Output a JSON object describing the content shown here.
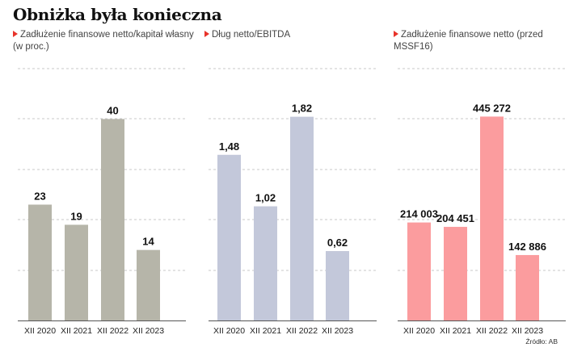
{
  "title": "Obniżka była konieczna",
  "source": "Źródło: AB",
  "chart_data": [
    {
      "type": "bar",
      "title": "Zadłużenie finansowe netto/kapitał własny",
      "title_line2": "(w proc.)",
      "categories": [
        "XII 2020",
        "XII 2021",
        "XII 2022",
        "XII 2023"
      ],
      "values": [
        23,
        19,
        40,
        14
      ],
      "value_labels": [
        "23",
        "19",
        "40",
        "14"
      ],
      "ylim": [
        0,
        50
      ],
      "grid": true,
      "color": "#b6b5a9"
    },
    {
      "type": "bar",
      "title": "Dług netto/EBITDA",
      "categories": [
        "XII 2020",
        "XII 2021",
        "XII 2022",
        "XII 2023"
      ],
      "values": [
        1.48,
        1.02,
        1.82,
        0.62
      ],
      "value_labels": [
        "1,48",
        "1,02",
        "1,82",
        "0,62"
      ],
      "ylim": [
        0,
        2.25
      ],
      "grid": true,
      "color": "#c3c8da"
    },
    {
      "type": "bar",
      "title": "Zadłużenie finansowe netto (przed MSSF16)",
      "categories": [
        "XII 2020",
        "XII 2021",
        "XII 2022",
        "XII 2023"
      ],
      "values": [
        214003,
        204451,
        445272,
        142886
      ],
      "value_labels": [
        "214 003",
        "204 451",
        "445 272",
        "142 886"
      ],
      "ylim": [
        0,
        550000
      ],
      "grid": true,
      "color": "#fb9c9e"
    }
  ]
}
